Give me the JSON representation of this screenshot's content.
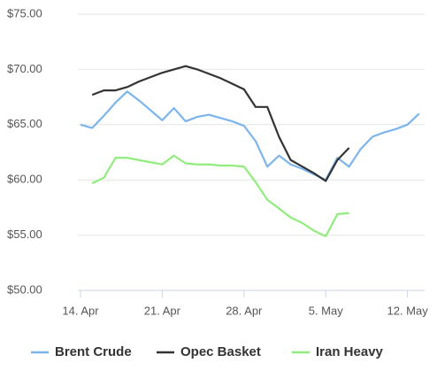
{
  "chart_data": {
    "type": "line",
    "categories": [
      "14. Apr",
      null,
      null,
      null,
      null,
      null,
      null,
      "21. Apr",
      null,
      null,
      null,
      null,
      null,
      null,
      "28. Apr",
      null,
      null,
      null,
      null,
      null,
      null,
      "5. May",
      null,
      null,
      null,
      null,
      null,
      null,
      "12. May",
      null
    ],
    "series": [
      {
        "name": "Brent Crude",
        "color": "#7cb5ec",
        "values": [
          65.0,
          64.7,
          65.8,
          67.0,
          68.0,
          67.2,
          66.3,
          65.4,
          66.5,
          65.3,
          65.7,
          65.9,
          65.6,
          65.3,
          64.9,
          63.5,
          61.2,
          62.2,
          61.4,
          61.0,
          60.5,
          60.0,
          62.0,
          61.2,
          62.8,
          63.9,
          64.3,
          64.6,
          65.0,
          66.0
        ]
      },
      {
        "name": "Opec Basket",
        "color": "#333333",
        "values": [
          null,
          67.7,
          68.1,
          68.1,
          68.4,
          68.9,
          69.3,
          69.7,
          70.0,
          70.3,
          70.0,
          69.6,
          69.2,
          68.7,
          68.2,
          66.6,
          66.6,
          63.9,
          61.8,
          61.2,
          60.6,
          59.9,
          61.8,
          62.9,
          null,
          null,
          null,
          null,
          null,
          null
        ]
      },
      {
        "name": "Iran Heavy",
        "color": "#90ed7d",
        "values": [
          null,
          59.7,
          60.2,
          62.0,
          62.0,
          61.8,
          61.6,
          61.4,
          62.2,
          61.5,
          61.4,
          61.4,
          61.3,
          61.3,
          61.2,
          59.8,
          58.2,
          57.4,
          56.6,
          56.1,
          55.4,
          54.9,
          56.9,
          57.0,
          null,
          null,
          null,
          null,
          null,
          null
        ]
      }
    ],
    "ylim": [
      50,
      75
    ],
    "yticks": [
      {
        "value": 50,
        "label": "$50.00"
      },
      {
        "value": 55,
        "label": "$55.00"
      },
      {
        "value": 60,
        "label": "$60.00"
      },
      {
        "value": 65,
        "label": "$65.00"
      },
      {
        "value": 70,
        "label": "$70.00"
      },
      {
        "value": 75,
        "label": "$75.00"
      }
    ],
    "grid": true,
    "legend": "bottom"
  }
}
